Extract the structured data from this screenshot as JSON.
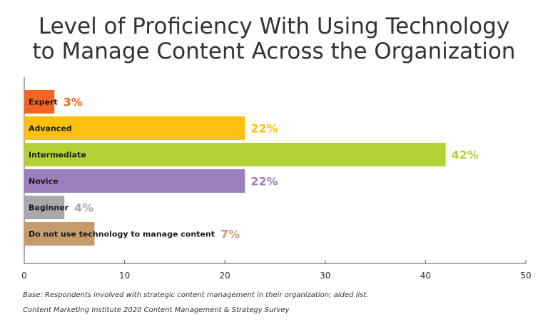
{
  "chart_data": {
    "type": "bar",
    "orientation": "horizontal",
    "title_lines": [
      "Level of Proficiency With Using Technology",
      "to Manage Content Across the Organization"
    ],
    "categories": [
      "Expert",
      "Advanced",
      "Intermediate",
      "Novice",
      "Beginner",
      "Do not use technology to manage content"
    ],
    "values": [
      3,
      22,
      42,
      22,
      4,
      7
    ],
    "value_labels": [
      "3%",
      "22%",
      "42%",
      "22%",
      "4%",
      "7%"
    ],
    "colors": [
      "#f26522",
      "#fdc010",
      "#b3d334",
      "#9b7ebc",
      "#a7a9ac",
      "#c69c6d"
    ],
    "label_colors": [
      "#f26522",
      "#fdc010",
      "#b3d334",
      "#9b7ebc",
      "#a7a9ac",
      "#c69c6d"
    ],
    "xlim": [
      0,
      50
    ],
    "xticks": [
      0,
      10,
      20,
      30,
      40,
      50
    ],
    "grid": false,
    "legend": "none"
  },
  "footnotes": {
    "base": "Base: Respondents involved with strategic content management in their organization; aided list.",
    "source": "Content Marketing Institute 2020 Content Management & Strategy Survey"
  }
}
